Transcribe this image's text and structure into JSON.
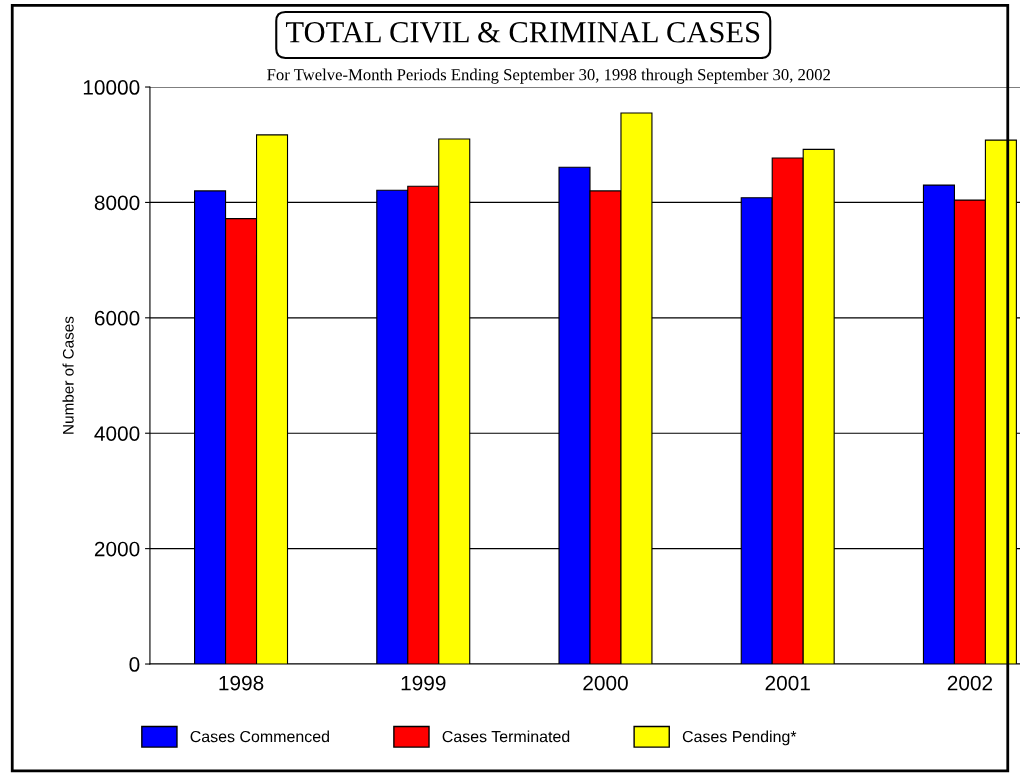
{
  "chart_data": {
    "type": "bar",
    "title": "TOTAL CIVIL & CRIMINAL CASES",
    "subtitle": "For Twelve-Month Periods Ending September 30, 1998 through September 30, 2002",
    "ylabel": "Number of Cases",
    "categories": [
      "1998",
      "1999",
      "2000",
      "2001",
      "2002"
    ],
    "series": [
      {
        "name": "Cases Commenced",
        "color": "#0000ff",
        "values": [
          8200,
          8210,
          8610,
          8080,
          8300
        ]
      },
      {
        "name": "Cases Terminated",
        "color": "#ff0000",
        "values": [
          7720,
          8280,
          8200,
          8770,
          8040
        ]
      },
      {
        "name": "Cases Pending*",
        "color": "#ffff00",
        "values": [
          9170,
          9100,
          9550,
          8920,
          9080
        ]
      }
    ],
    "ylim": [
      0,
      10000
    ],
    "yticks": [
      0,
      2000,
      4000,
      6000,
      8000,
      10000
    ],
    "grid": "y",
    "legend": "bottom"
  }
}
